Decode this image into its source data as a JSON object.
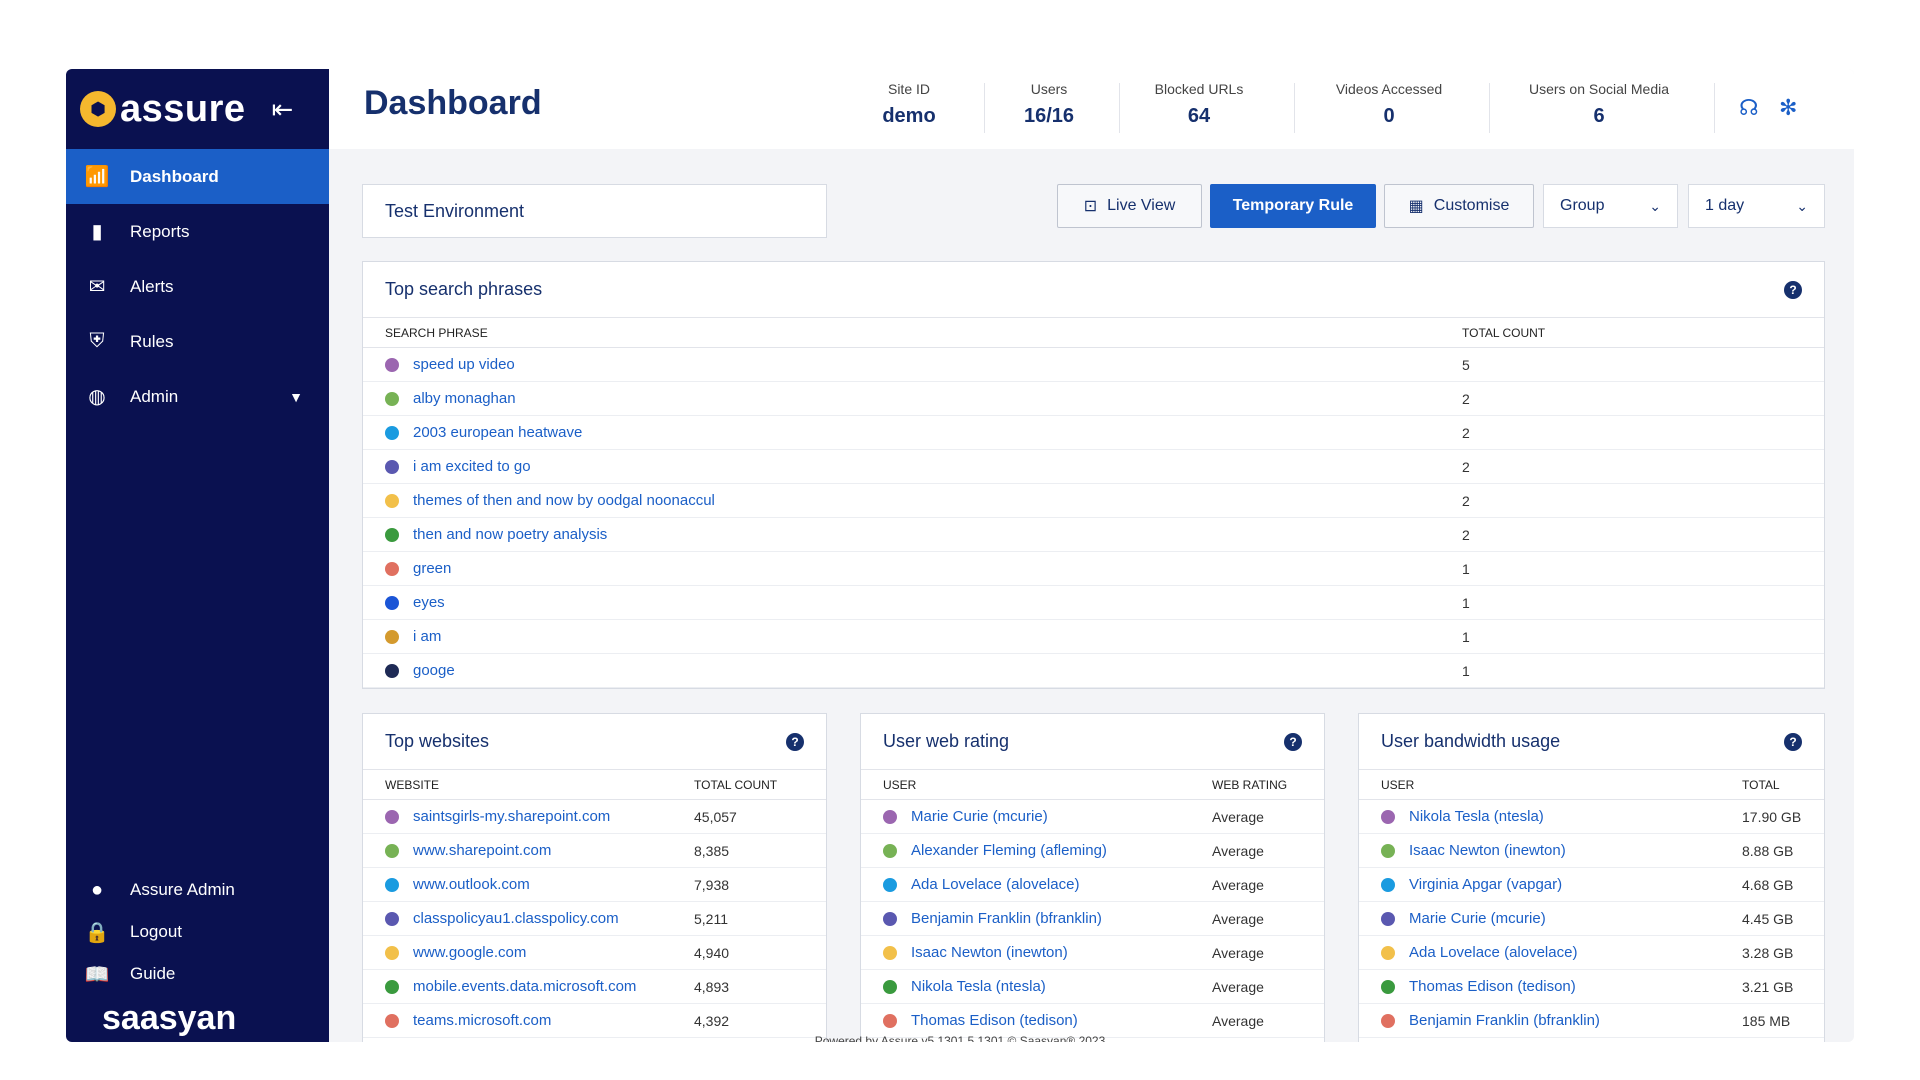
{
  "sidebar": {
    "logo_text": "assure",
    "nav": [
      {
        "label": "Dashboard",
        "icon": "wifi-icon"
      },
      {
        "label": "Reports",
        "icon": "bar-chart-icon"
      },
      {
        "label": "Alerts",
        "icon": "mail-icon"
      },
      {
        "label": "Rules",
        "icon": "shield-icon"
      },
      {
        "label": "Admin",
        "icon": "globe-icon"
      }
    ],
    "bottom": [
      {
        "label": "Assure Admin",
        "icon": "user-icon"
      },
      {
        "label": "Logout",
        "icon": "lock-icon"
      },
      {
        "label": "Guide",
        "icon": "book-icon"
      }
    ],
    "brand": "saasyan"
  },
  "header": {
    "title": "Dashboard",
    "stats": [
      {
        "label": "Site ID",
        "value": "demo"
      },
      {
        "label": "Users",
        "value": "16/16"
      },
      {
        "label": "Blocked URLs",
        "value": "64"
      },
      {
        "label": "Videos Accessed",
        "value": "0"
      },
      {
        "label": "Users on Social Media",
        "value": "6"
      }
    ]
  },
  "toolbar": {
    "environment": "Test Environment",
    "live_view": "Live View",
    "temporary_rule": "Temporary Rule",
    "customise": "Customise",
    "group": "Group",
    "range": "1 day"
  },
  "colors": [
    "#9b66b0",
    "#77b255",
    "#1a9be0",
    "#5a58b0",
    "#f2c04a",
    "#3a9a3e",
    "#e07060",
    "#1b55d6",
    "#d49a2e",
    "#1e2a55"
  ],
  "search_phrases": {
    "title": "Top search phrases",
    "col_phrase": "SEARCH PHRASE",
    "col_count": "TOTAL COUNT",
    "rows": [
      {
        "name": "speed up video",
        "count": "5"
      },
      {
        "name": "alby monaghan",
        "count": "2"
      },
      {
        "name": "2003 european heatwave",
        "count": "2"
      },
      {
        "name": "i am excited to go",
        "count": "2"
      },
      {
        "name": "themes of then and now by oodgal noonaccul",
        "count": "2"
      },
      {
        "name": "then and now poetry analysis",
        "count": "2"
      },
      {
        "name": "green",
        "count": "1"
      },
      {
        "name": "eyes",
        "count": "1"
      },
      {
        "name": "i am",
        "count": "1"
      },
      {
        "name": "googe",
        "count": "1"
      }
    ]
  },
  "top_websites": {
    "title": "Top websites",
    "col_a": "WEBSITE",
    "col_b": "TOTAL COUNT",
    "rows": [
      {
        "name": "saintsgirls-my.sharepoint.com",
        "count": "45,057"
      },
      {
        "name": "www.sharepoint.com",
        "count": "8,385"
      },
      {
        "name": "www.outlook.com",
        "count": "7,938"
      },
      {
        "name": "classpolicyau1.classpolicy.com",
        "count": "5,211"
      },
      {
        "name": "www.google.com",
        "count": "4,940"
      },
      {
        "name": "mobile.events.data.microsoft.com",
        "count": "4,893"
      },
      {
        "name": "teams.microsoft.com",
        "count": "4,392"
      }
    ]
  },
  "web_rating": {
    "title": "User web rating",
    "col_a": "USER",
    "col_b": "WEB RATING",
    "rows": [
      {
        "name": "Marie Curie (mcurie)",
        "count": "Average"
      },
      {
        "name": "Alexander Fleming (afleming)",
        "count": "Average"
      },
      {
        "name": "Ada Lovelace (alovelace)",
        "count": "Average"
      },
      {
        "name": "Benjamin Franklin (bfranklin)",
        "count": "Average"
      },
      {
        "name": "Isaac Newton (inewton)",
        "count": "Average"
      },
      {
        "name": "Nikola Tesla (ntesla)",
        "count": "Average"
      },
      {
        "name": "Thomas Edison (tedison)",
        "count": "Average"
      }
    ]
  },
  "bandwidth": {
    "title": "User bandwidth usage",
    "col_a": "USER",
    "col_b": "TOTAL",
    "rows": [
      {
        "name": "Nikola Tesla (ntesla)",
        "count": "17.90 GB"
      },
      {
        "name": "Isaac Newton (inewton)",
        "count": "8.88 GB"
      },
      {
        "name": "Virginia Apgar (vapgar)",
        "count": "4.68 GB"
      },
      {
        "name": "Marie Curie (mcurie)",
        "count": "4.45 GB"
      },
      {
        "name": "Ada Lovelace (alovelace)",
        "count": "3.28 GB"
      },
      {
        "name": "Thomas Edison (tedison)",
        "count": "3.21 GB"
      },
      {
        "name": "Benjamin Franklin (bfranklin)",
        "count": "185 MB"
      }
    ]
  },
  "footer": "Powered by Assure v5.1301.5.1301 © Saasyan® 2023"
}
